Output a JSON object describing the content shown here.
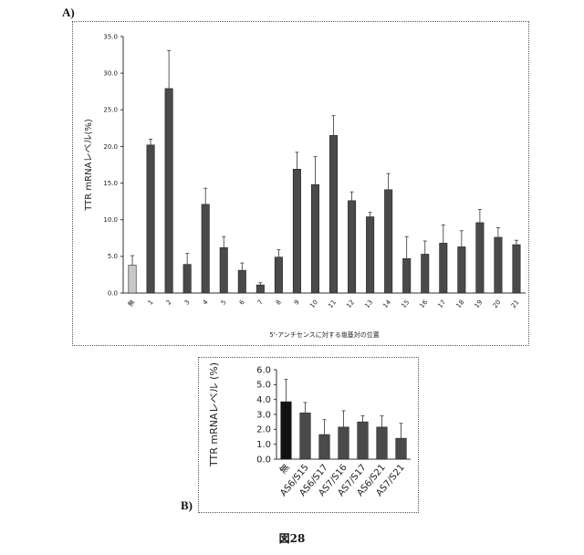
{
  "figure": {
    "panel_a_label": "A)",
    "panel_b_label": "B)",
    "caption": "図28"
  },
  "colors": {
    "bar_dark": "#4a4a4a",
    "bar_control_a": "#c8c8c8",
    "bar_black": "#111111",
    "axis": "#333333"
  },
  "chart_data": [
    {
      "id": "panel-a",
      "type": "bar",
      "title": "",
      "xlabel": "5'-アンチセンスに対する塩基対の位置",
      "ylabel": "TTR mRNAレベル(%)",
      "ylim": [
        0,
        35
      ],
      "yticks": [
        "0.0",
        "5.0",
        "10.0",
        "15.0",
        "20.0",
        "25.0",
        "30.0",
        "35.0"
      ],
      "grid": false,
      "categories": [
        "無",
        "1",
        "2",
        "3",
        "4",
        "5",
        "6",
        "7",
        "8",
        "9",
        "10",
        "11",
        "12",
        "13",
        "14",
        "15",
        "16",
        "17",
        "18",
        "19",
        "20",
        "21"
      ],
      "values": [
        3.8,
        20.2,
        27.9,
        3.9,
        12.1,
        6.2,
        3.1,
        1.1,
        4.9,
        16.9,
        14.8,
        21.5,
        12.6,
        10.4,
        14.1,
        4.7,
        5.3,
        6.8,
        6.3,
        9.6,
        7.6,
        6.6
      ],
      "errors": [
        1.3,
        0.8,
        5.2,
        1.5,
        2.2,
        1.5,
        1.0,
        0.3,
        1.0,
        2.3,
        3.8,
        2.7,
        1.2,
        0.6,
        2.2,
        3.0,
        1.8,
        2.5,
        2.2,
        1.8,
        1.3,
        0.6
      ]
    },
    {
      "id": "panel-b",
      "type": "bar",
      "title": "",
      "xlabel": "",
      "ylabel": "TTR mRNAレベル (%)",
      "ylim": [
        0,
        6
      ],
      "yticks": [
        "0.0",
        "1.0",
        "2.0",
        "3.0",
        "4.0",
        "5.0",
        "6.0"
      ],
      "grid": false,
      "categories": [
        "無",
        "AS6/S15",
        "AS6/S17",
        "AS7/S16",
        "AS7/S17",
        "AS6/S21",
        "AS7/S21"
      ],
      "values": [
        3.85,
        3.1,
        1.65,
        2.15,
        2.5,
        2.15,
        1.4
      ],
      "errors": [
        1.5,
        0.7,
        1.0,
        1.1,
        0.4,
        0.75,
        1.0
      ]
    }
  ]
}
